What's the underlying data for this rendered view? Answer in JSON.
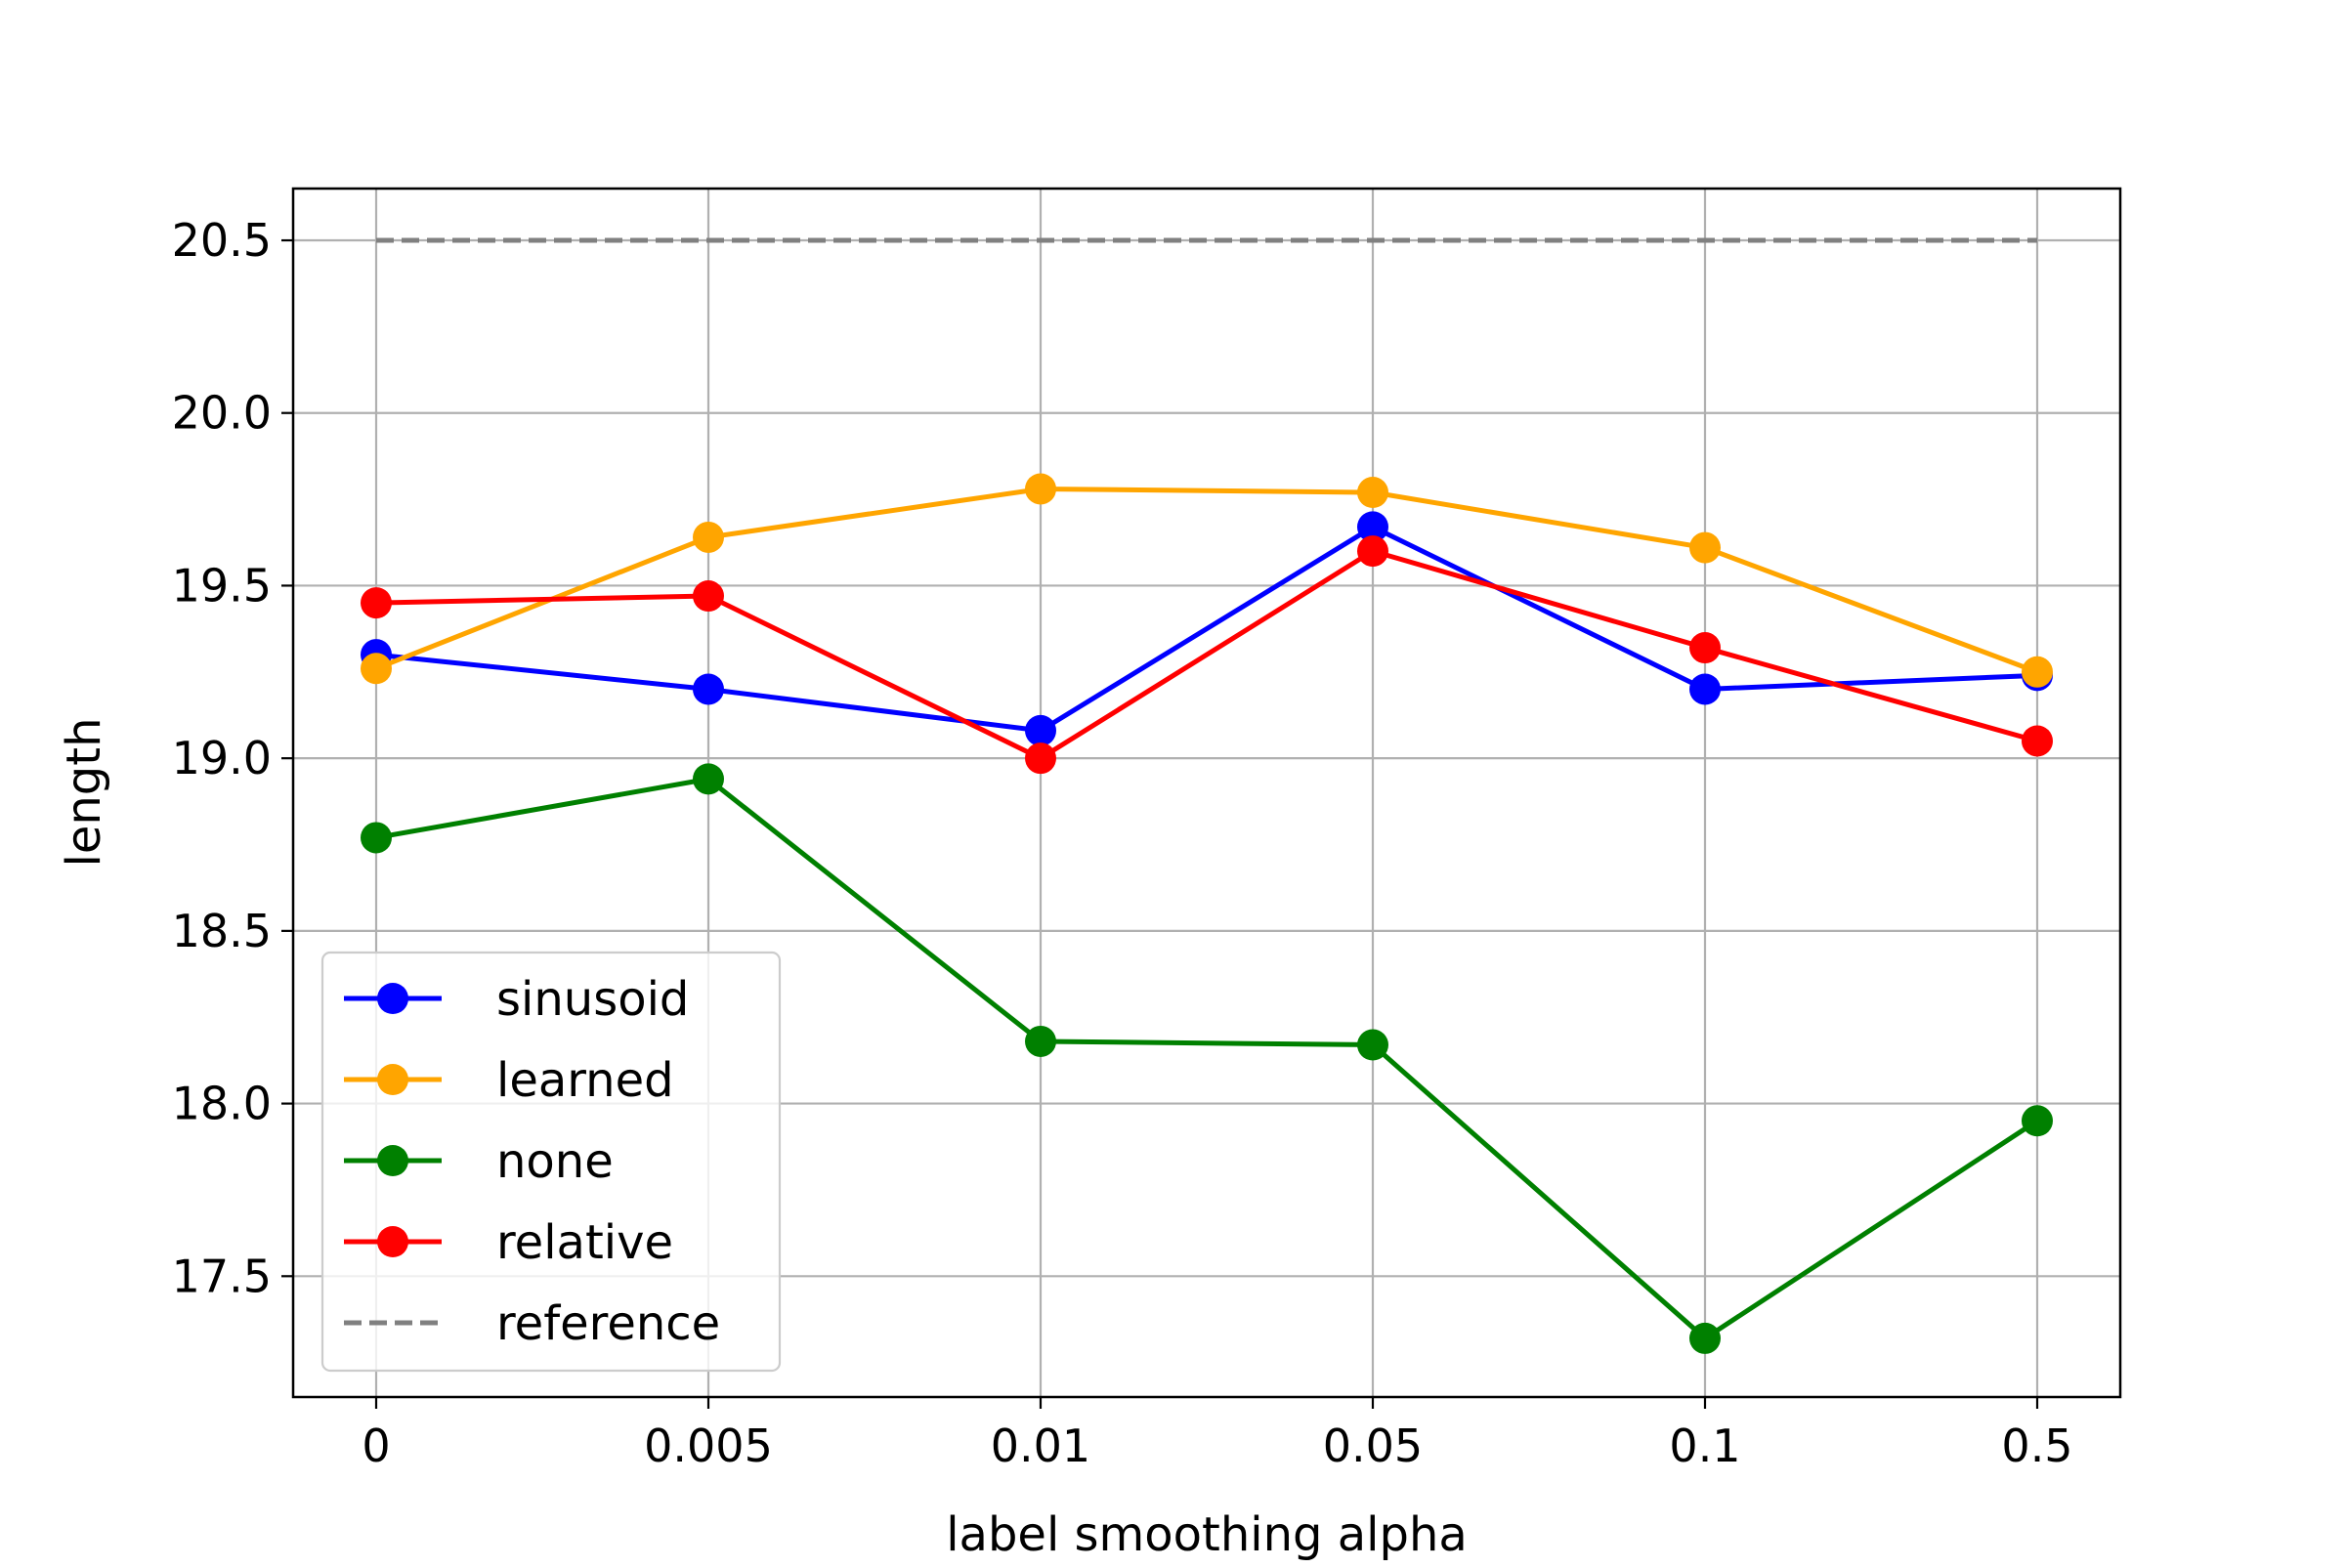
{
  "chart_data": {
    "type": "line",
    "title": "",
    "xlabel": "label smoothing alpha",
    "ylabel": "length",
    "categories": [
      "0",
      "0.005",
      "0.01",
      "0.05",
      "0.1",
      "0.5"
    ],
    "ylim": [
      17.15,
      20.65
    ],
    "yticks": [
      17.5,
      18.0,
      18.5,
      19.0,
      19.5,
      20.0,
      20.5
    ],
    "ytick_labels": [
      "17.5",
      "18.0",
      "18.5",
      "19.0",
      "19.5",
      "20.0",
      "20.5"
    ],
    "grid": true,
    "legend_position": "lower-left",
    "series": [
      {
        "name": "sinusoid",
        "color": "#0000ff",
        "style": "solid-marker",
        "values": [
          19.3,
          19.2,
          19.08,
          19.67,
          19.2,
          19.24
        ]
      },
      {
        "name": "learned",
        "color": "#ffa500",
        "style": "solid-marker",
        "values": [
          19.26,
          19.64,
          19.78,
          19.77,
          19.61,
          19.25
        ]
      },
      {
        "name": "none",
        "color": "#008000",
        "style": "solid-marker",
        "values": [
          18.77,
          18.94,
          18.18,
          18.17,
          17.32,
          17.95
        ]
      },
      {
        "name": "relative",
        "color": "#ff0000",
        "style": "solid-marker",
        "values": [
          19.45,
          19.47,
          19.0,
          19.6,
          19.32,
          19.05
        ]
      },
      {
        "name": "reference",
        "color": "#808080",
        "style": "dashed",
        "values": [
          20.5,
          20.5,
          20.5,
          20.5,
          20.5,
          20.5
        ]
      }
    ]
  }
}
